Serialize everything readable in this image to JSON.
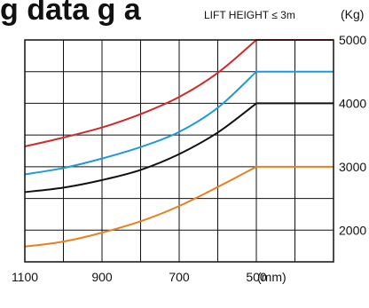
{
  "chart_data": {
    "type": "line",
    "title": "",
    "title_fragment": "g data g a",
    "condition_label": "LIFT HEIGHT ≤ 3m",
    "y_unit_label": "(Kg)",
    "x_unit_label": "(mm)",
    "xlim": [
      1100,
      300
    ],
    "ylim": [
      1500,
      5000
    ],
    "x_tick_labels": [
      "1100",
      "900",
      "700",
      "500"
    ],
    "x_ticks": [
      1100,
      900,
      700,
      500
    ],
    "y_tick_labels": [
      "2000",
      "3000",
      "4000",
      "5000"
    ],
    "y_ticks": [
      2000,
      3000,
      4000,
      5000
    ],
    "grid": true,
    "series": [
      {
        "color": "#d02b2b",
        "x": [
          1100,
          1000,
          900,
          800,
          700,
          600,
          500,
          400,
          300
        ],
        "y": [
          3320,
          3460,
          3620,
          3830,
          4100,
          4480,
          5000,
          5000,
          5000
        ]
      },
      {
        "color": "#1e9ad6",
        "x": [
          1100,
          1000,
          900,
          800,
          700,
          600,
          500,
          400,
          300
        ],
        "y": [
          2880,
          2980,
          3130,
          3310,
          3550,
          3930,
          4500,
          4500,
          4500
        ]
      },
      {
        "color": "#111111",
        "x": [
          1100,
          1000,
          900,
          800,
          700,
          600,
          500,
          400,
          300
        ],
        "y": [
          2600,
          2670,
          2790,
          2950,
          3200,
          3540,
          4000,
          4000,
          4000
        ]
      },
      {
        "color": "#e8801e",
        "x": [
          1100,
          1000,
          900,
          800,
          700,
          600,
          500,
          400,
          300
        ],
        "y": [
          1740,
          1820,
          1960,
          2140,
          2380,
          2680,
          3000,
          3000,
          3000
        ]
      }
    ]
  }
}
